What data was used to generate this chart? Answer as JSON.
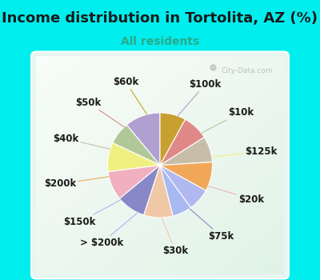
{
  "title": "Income distribution in Tortolita, AZ (%)",
  "subtitle": "All residents",
  "title_color": "#1a1a1a",
  "subtitle_color": "#2aaa8a",
  "background_color": "#00eeee",
  "panel_color": "#e8f5ee",
  "labels": [
    "$100k",
    "$10k",
    "$125k",
    "$20k",
    "$75k",
    "$30k",
    "> $200k",
    "$150k",
    "$200k",
    "$40k",
    "$50k",
    "$60k"
  ],
  "values": [
    11,
    7,
    9,
    9,
    9,
    9,
    6,
    7,
    9,
    8,
    8,
    8
  ],
  "colors": [
    "#b0a0d0",
    "#b0c898",
    "#f0f080",
    "#f0b0c0",
    "#8888c8",
    "#f0c8a8",
    "#a8b8f0",
    "#b0b8f0",
    "#f0a858",
    "#c8bea8",
    "#e08888",
    "#c8a030"
  ],
  "label_fontsize": 8.5,
  "title_fontsize": 13,
  "subtitle_fontsize": 10,
  "watermark": "City-Data.com"
}
